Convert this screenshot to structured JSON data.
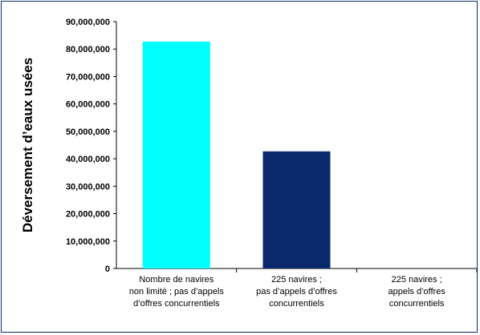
{
  "chart_data": {
    "type": "bar",
    "ylabel": "Déversement d’eaux usées",
    "xlabel": "",
    "title": "",
    "ylim": [
      0,
      90000000
    ],
    "yticks": [
      "0",
      "10,000,000",
      "20,000,000",
      "30,000,000",
      "40,000,000",
      "50,000,000",
      "60,000,000",
      "70,000,000",
      "80,000,000",
      "90,000,000"
    ],
    "categories": [
      [
        "Nombre de  navires",
        "non limité ; pas d’appels",
        "d’offres concurrentiels"
      ],
      [
        "225 navires ;",
        "pas d’appels d’offres",
        "concurrentiels"
      ],
      [
        "225 navires ;",
        "appels d’offres",
        "concurrentiels"
      ]
    ],
    "values": [
      82700000,
      42700000,
      0
    ],
    "colors": [
      "#00ffff",
      "#0b2a6e",
      "#0b2a6e"
    ],
    "grid": false,
    "legend": "none"
  }
}
